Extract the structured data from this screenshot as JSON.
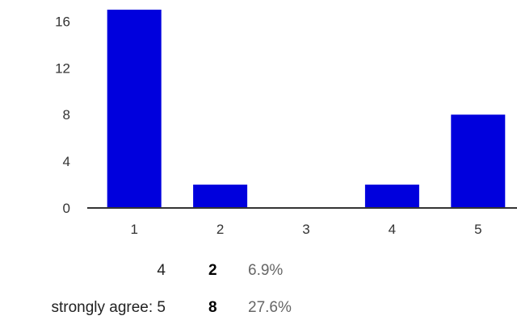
{
  "chart_data": {
    "type": "bar",
    "categories": [
      "1",
      "2",
      "3",
      "4",
      "5"
    ],
    "values": [
      17,
      2,
      0,
      2,
      8
    ],
    "ylim": [
      0,
      17
    ],
    "yticks": [
      0,
      4,
      8,
      12,
      16
    ],
    "grid": false,
    "colors": {
      "bar": "#0000dd",
      "axis": "#333333"
    }
  },
  "summary": {
    "rows": [
      {
        "label": "4",
        "count": "2",
        "percent": "6.9%"
      },
      {
        "label": "strongly agree: 5",
        "count": "8",
        "percent": "27.6%"
      }
    ]
  }
}
